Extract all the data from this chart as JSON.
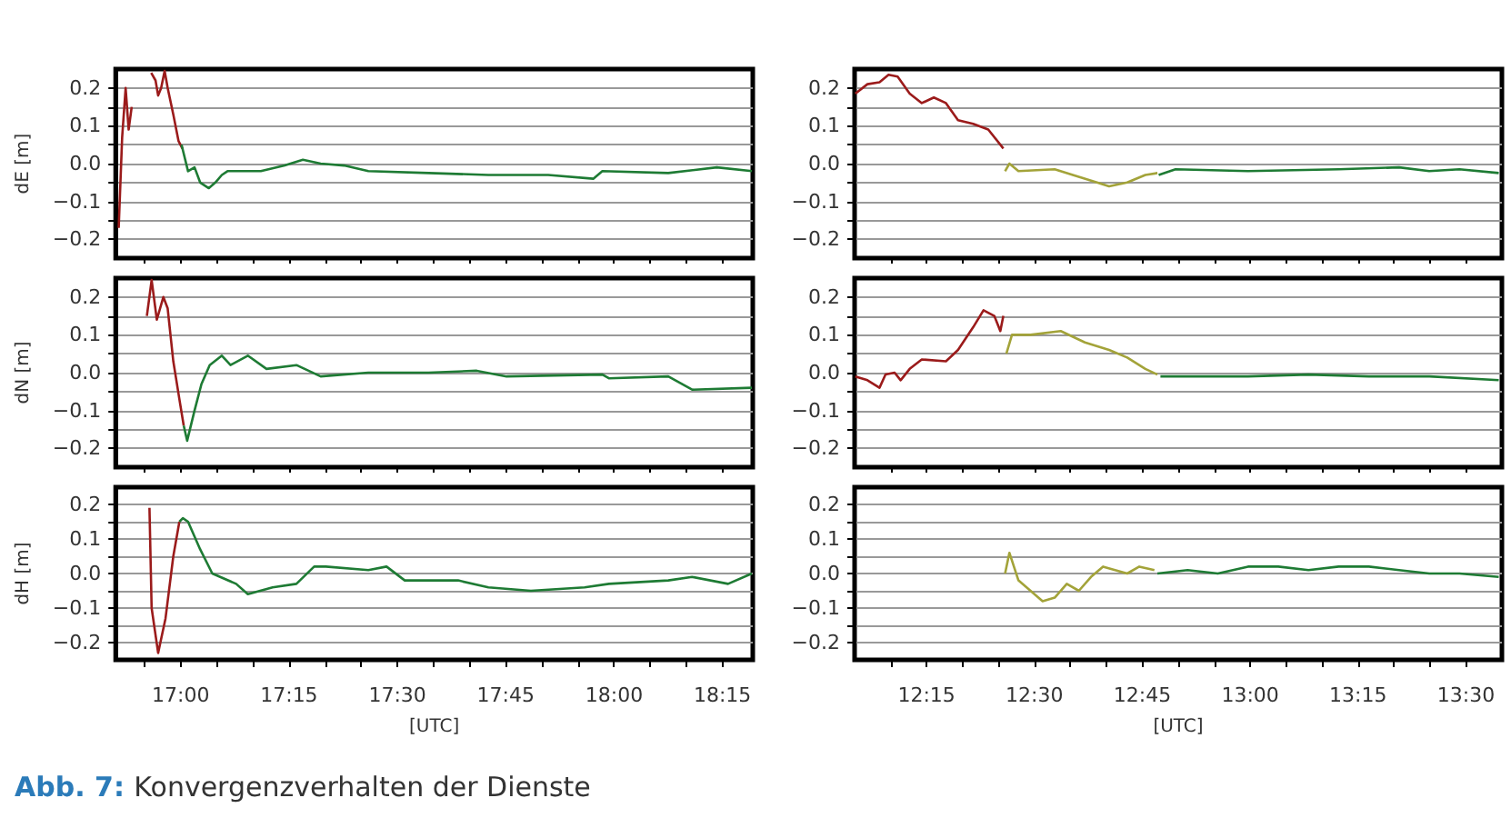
{
  "chart_data": [
    {
      "type": "line",
      "ylabel": "dE [m]",
      "xlim": [
        16.85,
        18.32
      ],
      "ylim": [
        -0.25,
        0.25
      ],
      "grid": "y",
      "tick_labels": "y",
      "annotations": [
        "Abb. 7:",
        "Konvergenzverhalten der Dienste"
      ],
      "xticks": [
        {
          "value": 16.9167,
          "label": null
        },
        {
          "value": 17,
          "label": null
        },
        {
          "value": 17.0833,
          "label": null
        },
        {
          "value": 17.1667,
          "label": null
        },
        {
          "value": 17.25,
          "label": null
        },
        {
          "value": 17.3333,
          "label": null
        },
        {
          "value": 17.4167,
          "label": null
        },
        {
          "value": 17.5,
          "label": null
        },
        {
          "value": 17.5833,
          "label": null
        },
        {
          "value": 17.6667,
          "label": null
        },
        {
          "value": 17.75,
          "label": null
        },
        {
          "value": 17.8333,
          "label": null
        },
        {
          "value": 17.9167,
          "label": null
        },
        {
          "value": 18,
          "label": null
        },
        {
          "value": 18.0833,
          "label": null
        },
        {
          "value": 18.1667,
          "label": null
        },
        {
          "value": 18.25,
          "label": null
        }
      ],
      "yticks": [
        {
          "value": -0.2,
          "label": "−0.2"
        },
        {
          "value": -0.15,
          "label": null
        },
        {
          "value": -0.1,
          "label": "−0.1"
        },
        {
          "value": -0.05,
          "label": null
        },
        {
          "value": 0,
          "label": "0.0"
        },
        {
          "value": 0.05,
          "label": null
        },
        {
          "value": 0.1,
          "label": "0.1"
        },
        {
          "value": 0.15,
          "label": null
        },
        {
          "value": 0.2,
          "label": "0.2"
        }
      ],
      "series": [
        {
          "color": "#9b1b1b",
          "x": [
            16.857,
            16.865,
            16.873,
            16.88,
            16.887,
            16.91,
            16.932,
            16.942,
            16.948,
            16.955,
            16.963,
            16.97,
            16.983,
            16.995,
            17.004
          ],
          "values": [
            -0.17,
            0.07,
            0.2,
            0.09,
            0.15,
            null,
            0.24,
            0.22,
            0.18,
            0.2,
            0.245,
            0.2,
            0.13,
            0.06,
            0.04
          ]
        },
        {
          "color": "#1e7b34",
          "x": [
            17.002,
            17.017,
            17.032,
            17.045,
            17.065,
            17.08,
            17.095,
            17.108,
            17.185,
            17.24,
            17.282,
            17.323,
            17.377,
            17.433,
            17.572,
            17.71,
            17.848,
            17.952,
            17.973,
            18.125,
            18.237,
            18.318
          ],
          "values": [
            0.05,
            -0.02,
            -0.01,
            -0.05,
            -0.065,
            -0.05,
            -0.03,
            -0.02,
            -0.02,
            -0.005,
            0.01,
            0,
            -0.005,
            -0.02,
            -0.025,
            -0.03,
            -0.03,
            -0.04,
            -0.02,
            -0.025,
            -0.01,
            -0.02
          ]
        }
      ]
    },
    {
      "type": "line",
      "ylabel": "dN [m]",
      "xlim": [
        16.85,
        18.32
      ],
      "ylim": [
        -0.25,
        0.25
      ],
      "grid": "y",
      "tick_labels": "y",
      "xticks": [
        {
          "value": 16.9167,
          "label": null
        },
        {
          "value": 17,
          "label": null
        },
        {
          "value": 17.0833,
          "label": null
        },
        {
          "value": 17.1667,
          "label": null
        },
        {
          "value": 17.25,
          "label": null
        },
        {
          "value": 17.3333,
          "label": null
        },
        {
          "value": 17.4167,
          "label": null
        },
        {
          "value": 17.5,
          "label": null
        },
        {
          "value": 17.5833,
          "label": null
        },
        {
          "value": 17.6667,
          "label": null
        },
        {
          "value": 17.75,
          "label": null
        },
        {
          "value": 17.8333,
          "label": null
        },
        {
          "value": 17.9167,
          "label": null
        },
        {
          "value": 18,
          "label": null
        },
        {
          "value": 18.0833,
          "label": null
        },
        {
          "value": 18.1667,
          "label": null
        },
        {
          "value": 18.25,
          "label": null
        }
      ],
      "yticks": [
        {
          "value": -0.2,
          "label": "−0.2"
        },
        {
          "value": -0.15,
          "label": null
        },
        {
          "value": -0.1,
          "label": "−0.1"
        },
        {
          "value": -0.05,
          "label": null
        },
        {
          "value": 0,
          "label": "0.0"
        },
        {
          "value": 0.05,
          "label": null
        },
        {
          "value": 0.1,
          "label": "0.1"
        },
        {
          "value": 0.15,
          "label": null
        },
        {
          "value": 0.2,
          "label": "0.2"
        }
      ],
      "series": [
        {
          "color": "#9b1b1b",
          "x": [
            16.922,
            16.933,
            16.945,
            16.96,
            16.97,
            16.983,
            16.997,
            17.007
          ],
          "values": [
            0.15,
            0.245,
            0.14,
            0.2,
            0.17,
            0.03,
            -0.07,
            -0.14
          ]
        },
        {
          "color": "#1e7b34",
          "x": [
            17.007,
            17.015,
            17.032,
            17.048,
            17.067,
            17.095,
            17.115,
            17.155,
            17.198,
            17.267,
            17.323,
            17.433,
            17.572,
            17.683,
            17.752,
            17.973,
            17.988,
            18.125,
            18.18,
            18.318
          ],
          "values": [
            -0.14,
            -0.18,
            -0.1,
            -0.03,
            0.02,
            0.045,
            0.02,
            0.045,
            0.01,
            0.02,
            -0.01,
            0,
            0,
            0.005,
            -0.01,
            -0.005,
            -0.015,
            -0.01,
            -0.045,
            -0.04
          ]
        }
      ]
    },
    {
      "type": "line",
      "ylabel": "dH [m]",
      "xlabel": "[UTC]",
      "xlim": [
        16.85,
        18.32
      ],
      "ylim": [
        -0.25,
        0.25
      ],
      "grid": "y",
      "xticks": [
        {
          "value": 16.9167,
          "label": null
        },
        {
          "value": 17,
          "label": "17:00"
        },
        {
          "value": 17.0833,
          "label": null
        },
        {
          "value": 17.1667,
          "label": null
        },
        {
          "value": 17.25,
          "label": "17:15"
        },
        {
          "value": 17.3333,
          "label": null
        },
        {
          "value": 17.4167,
          "label": null
        },
        {
          "value": 17.5,
          "label": "17:30"
        },
        {
          "value": 17.5833,
          "label": null
        },
        {
          "value": 17.6667,
          "label": null
        },
        {
          "value": 17.75,
          "label": "17:45"
        },
        {
          "value": 17.8333,
          "label": null
        },
        {
          "value": 17.9167,
          "label": null
        },
        {
          "value": 18,
          "label": "18:00"
        },
        {
          "value": 18.0833,
          "label": null
        },
        {
          "value": 18.1667,
          "label": null
        },
        {
          "value": 18.25,
          "label": "18:15"
        }
      ],
      "yticks": [
        {
          "value": -0.2,
          "label": "−0.2"
        },
        {
          "value": -0.15,
          "label": null
        },
        {
          "value": -0.1,
          "label": "−0.1"
        },
        {
          "value": -0.05,
          "label": null
        },
        {
          "value": 0,
          "label": "0.0"
        },
        {
          "value": 0.05,
          "label": null
        },
        {
          "value": 0.1,
          "label": "0.1"
        },
        {
          "value": 0.15,
          "label": null
        },
        {
          "value": 0.2,
          "label": "0.2"
        }
      ],
      "series": [
        {
          "color": "#9b1b1b",
          "x": [
            16.928,
            16.933,
            16.948,
            16.965,
            16.983,
            16.997
          ],
          "values": [
            0.19,
            -0.1,
            -0.23,
            -0.13,
            0.05,
            0.15
          ]
        },
        {
          "color": "#1e7b34",
          "x": [
            16.997,
            17.005,
            17.017,
            17.045,
            17.073,
            17.128,
            17.155,
            17.212,
            17.267,
            17.308,
            17.335,
            17.433,
            17.475,
            17.517,
            17.64,
            17.71,
            17.808,
            17.932,
            17.988,
            18.125,
            18.18,
            18.263,
            18.318
          ],
          "values": [
            0.15,
            0.16,
            0.15,
            0.07,
            0,
            -0.03,
            -0.06,
            -0.04,
            -0.03,
            0.02,
            0.02,
            0.01,
            0.02,
            -0.02,
            -0.02,
            -0.04,
            -0.05,
            -0.04,
            -0.03,
            -0.02,
            -0.01,
            -0.03,
            0
          ]
        }
      ]
    },
    {
      "type": "line",
      "xlim": [
        12.0833,
        13.5833
      ],
      "ylim": [
        -0.25,
        0.25
      ],
      "grid": "y",
      "tick_labels": "y",
      "xticks": [
        {
          "value": 12.1667,
          "label": null
        },
        {
          "value": 12.25,
          "label": null
        },
        {
          "value": 12.3333,
          "label": null
        },
        {
          "value": 12.4167,
          "label": null
        },
        {
          "value": 12.5,
          "label": null
        },
        {
          "value": 12.5833,
          "label": null
        },
        {
          "value": 12.6667,
          "label": null
        },
        {
          "value": 12.75,
          "label": null
        },
        {
          "value": 12.8333,
          "label": null
        },
        {
          "value": 12.9167,
          "label": null
        },
        {
          "value": 13,
          "label": null
        },
        {
          "value": 13.0833,
          "label": null
        },
        {
          "value": 13.1667,
          "label": null
        },
        {
          "value": 13.25,
          "label": null
        },
        {
          "value": 13.3333,
          "label": null
        },
        {
          "value": 13.4167,
          "label": null
        },
        {
          "value": 13.5,
          "label": null
        }
      ],
      "yticks": [
        {
          "value": -0.2,
          "label": "−0.2"
        },
        {
          "value": -0.15,
          "label": null
        },
        {
          "value": -0.1,
          "label": "−0.1"
        },
        {
          "value": -0.05,
          "label": null
        },
        {
          "value": 0,
          "label": "0.0"
        },
        {
          "value": 0.05,
          "label": null
        },
        {
          "value": 0.1,
          "label": "0.1"
        },
        {
          "value": 0.15,
          "label": null
        },
        {
          "value": 0.2,
          "label": "0.2"
        }
      ],
      "series": [
        {
          "color": "#9b1b1b",
          "x": [
            12.085,
            12.113,
            12.141,
            12.162,
            12.183,
            12.211,
            12.239,
            12.267,
            12.295,
            12.323,
            12.358,
            12.393,
            12.428
          ],
          "values": [
            0.185,
            0.21,
            0.215,
            0.235,
            0.23,
            0.185,
            0.16,
            0.175,
            0.16,
            0.115,
            0.105,
            0.09,
            0.04
          ]
        },
        {
          "color": "#a3a339",
          "x": [
            12.432,
            12.442,
            12.463,
            12.547,
            12.589,
            12.645,
            12.673,
            12.715,
            12.757,
            12.785
          ],
          "values": [
            -0.02,
            0,
            -0.02,
            -0.015,
            -0.03,
            -0.05,
            -0.06,
            -0.05,
            -0.03,
            -0.025
          ]
        },
        {
          "color": "#1e7b34",
          "x": [
            12.788,
            12.827,
            12.995,
            13.205,
            13.345,
            13.415,
            13.485,
            13.576
          ],
          "values": [
            -0.03,
            -0.015,
            -0.02,
            -0.015,
            -0.01,
            -0.02,
            -0.015,
            -0.025
          ]
        }
      ]
    },
    {
      "type": "line",
      "xlim": [
        12.0833,
        13.5833
      ],
      "ylim": [
        -0.25,
        0.25
      ],
      "grid": "y",
      "tick_labels": "y",
      "xticks": [
        {
          "value": 12.1667,
          "label": null
        },
        {
          "value": 12.25,
          "label": null
        },
        {
          "value": 12.3333,
          "label": null
        },
        {
          "value": 12.4167,
          "label": null
        },
        {
          "value": 12.5,
          "label": null
        },
        {
          "value": 12.5833,
          "label": null
        },
        {
          "value": 12.6667,
          "label": null
        },
        {
          "value": 12.75,
          "label": null
        },
        {
          "value": 12.8333,
          "label": null
        },
        {
          "value": 12.9167,
          "label": null
        },
        {
          "value": 13,
          "label": null
        },
        {
          "value": 13.0833,
          "label": null
        },
        {
          "value": 13.1667,
          "label": null
        },
        {
          "value": 13.25,
          "label": null
        },
        {
          "value": 13.3333,
          "label": null
        },
        {
          "value": 13.4167,
          "label": null
        },
        {
          "value": 13.5,
          "label": null
        }
      ],
      "yticks": [
        {
          "value": -0.2,
          "label": "−0.2"
        },
        {
          "value": -0.15,
          "label": null
        },
        {
          "value": -0.1,
          "label": "−0.1"
        },
        {
          "value": -0.05,
          "label": null
        },
        {
          "value": 0,
          "label": "0.0"
        },
        {
          "value": 0.05,
          "label": null
        },
        {
          "value": 0.1,
          "label": "0.1"
        },
        {
          "value": 0.15,
          "label": null
        },
        {
          "value": 0.2,
          "label": "0.2"
        }
      ],
      "series": [
        {
          "color": "#9b1b1b",
          "x": [
            12.085,
            12.113,
            12.141,
            12.155,
            12.176,
            12.19,
            12.211,
            12.239,
            12.295,
            12.323,
            12.358,
            12.382,
            12.407,
            12.421,
            12.428
          ],
          "values": [
            -0.01,
            -0.02,
            -0.04,
            -0.005,
            0,
            -0.02,
            0.01,
            0.035,
            0.03,
            0.06,
            0.12,
            0.165,
            0.15,
            0.11,
            0.15
          ]
        },
        {
          "color": "#a3a339",
          "x": [
            12.435,
            12.448,
            12.491,
            12.561,
            12.617,
            12.673,
            12.715,
            12.757,
            12.785
          ],
          "values": [
            0.05,
            0.1,
            0.1,
            0.11,
            0.08,
            0.06,
            0.04,
            0.01,
            -0.005
          ]
        },
        {
          "color": "#1e7b34",
          "x": [
            12.792,
            12.855,
            12.995,
            13.135,
            13.275,
            13.415,
            13.576
          ],
          "values": [
            -0.01,
            -0.01,
            -0.01,
            -0.005,
            -0.01,
            -0.01,
            -0.02
          ]
        }
      ]
    },
    {
      "type": "line",
      "xlabel": "[UTC]",
      "xlim": [
        12.0833,
        13.5833
      ],
      "ylim": [
        -0.25,
        0.25
      ],
      "grid": "y",
      "xticks": [
        {
          "value": 12.1667,
          "label": null
        },
        {
          "value": 12.25,
          "label": "12:15"
        },
        {
          "value": 12.3333,
          "label": null
        },
        {
          "value": 12.4167,
          "label": null
        },
        {
          "value": 12.5,
          "label": "12:30"
        },
        {
          "value": 12.5833,
          "label": null
        },
        {
          "value": 12.6667,
          "label": null
        },
        {
          "value": 12.75,
          "label": "12:45"
        },
        {
          "value": 12.8333,
          "label": null
        },
        {
          "value": 12.9167,
          "label": null
        },
        {
          "value": 13,
          "label": "13:00"
        },
        {
          "value": 13.0833,
          "label": null
        },
        {
          "value": 13.1667,
          "label": null
        },
        {
          "value": 13.25,
          "label": "13:15"
        },
        {
          "value": 13.3333,
          "label": null
        },
        {
          "value": 13.4167,
          "label": null
        },
        {
          "value": 13.5,
          "label": "13:30"
        }
      ],
      "yticks": [
        {
          "value": -0.2,
          "label": "−0.2"
        },
        {
          "value": -0.15,
          "label": null
        },
        {
          "value": -0.1,
          "label": "−0.1"
        },
        {
          "value": -0.05,
          "label": null
        },
        {
          "value": 0,
          "label": "0.0"
        },
        {
          "value": 0.05,
          "label": null
        },
        {
          "value": 0.1,
          "label": "0.1"
        },
        {
          "value": 0.15,
          "label": null
        },
        {
          "value": 0.2,
          "label": "0.2"
        }
      ],
      "series": [
        {
          "color": "#a3a339",
          "x": [
            12.432,
            12.442,
            12.463,
            12.491,
            12.519,
            12.547,
            12.575,
            12.603,
            12.631,
            12.659,
            12.687,
            12.715,
            12.743,
            12.778
          ],
          "values": [
            0,
            0.06,
            -0.02,
            -0.05,
            -0.08,
            -0.07,
            -0.03,
            -0.05,
            -0.01,
            0.02,
            0.01,
            0,
            0.02,
            0.01
          ]
        },
        {
          "color": "#1e7b34",
          "x": [
            12.785,
            12.855,
            12.925,
            12.995,
            13.065,
            13.135,
            13.205,
            13.275,
            13.345,
            13.415,
            13.485,
            13.576
          ],
          "values": [
            0,
            0.01,
            0,
            0.02,
            0.02,
            0.01,
            0.02,
            0.02,
            0.01,
            0,
            0,
            -0.01
          ]
        }
      ]
    }
  ]
}
